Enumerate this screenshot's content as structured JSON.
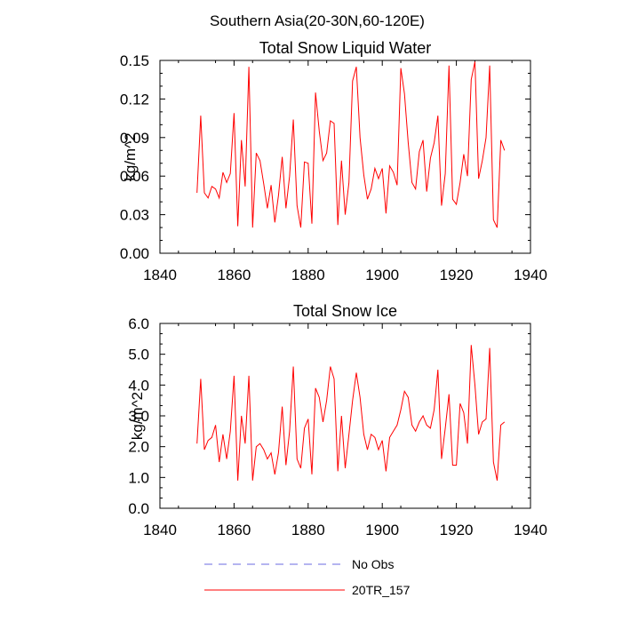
{
  "figure_title": "Southern Asia(20-30N,60-120E)",
  "legend": [
    {
      "label": "No Obs",
      "color": "#6a6ae0",
      "style": "dashed"
    },
    {
      "label": "20TR_157",
      "color": "#ff0000",
      "style": "solid"
    }
  ],
  "chart_data": [
    {
      "type": "line",
      "title": "Total Snow Liquid Water",
      "xlabel": "",
      "ylabel": "kg/m^2",
      "xlim": [
        1840,
        1940
      ],
      "ylim": [
        0,
        0.15
      ],
      "xticks": [
        1840,
        1860,
        1880,
        1900,
        1920,
        1940
      ],
      "yticks": [
        0.0,
        0.03,
        0.06,
        0.09,
        0.12,
        0.15
      ],
      "ytick_labels": [
        "0.00",
        "0.03",
        "0.06",
        "0.09",
        "0.12",
        "0.15"
      ],
      "series": [
        {
          "name": "20TR_157",
          "color": "#ff0000",
          "x": [
            1850,
            1851,
            1852,
            1853,
            1854,
            1855,
            1856,
            1857,
            1858,
            1859,
            1860,
            1861,
            1862,
            1863,
            1864,
            1865,
            1866,
            1867,
            1868,
            1869,
            1870,
            1871,
            1872,
            1873,
            1874,
            1875,
            1876,
            1877,
            1878,
            1879,
            1880,
            1881,
            1882,
            1883,
            1884,
            1885,
            1886,
            1887,
            1888,
            1889,
            1890,
            1891,
            1892,
            1893,
            1894,
            1895,
            1896,
            1897,
            1898,
            1899,
            1900,
            1901,
            1902,
            1903,
            1904,
            1905,
            1906,
            1907,
            1908,
            1909,
            1910,
            1911,
            1912,
            1913,
            1914,
            1915,
            1916,
            1917,
            1918,
            1919,
            1920,
            1921,
            1922,
            1923,
            1924,
            1925,
            1926,
            1927,
            1928,
            1929,
            1930,
            1931,
            1932,
            1933
          ],
          "values": [
            0.047,
            0.107,
            0.047,
            0.043,
            0.052,
            0.05,
            0.043,
            0.063,
            0.055,
            0.062,
            0.109,
            0.021,
            0.088,
            0.052,
            0.145,
            0.02,
            0.078,
            0.072,
            0.054,
            0.035,
            0.053,
            0.024,
            0.045,
            0.075,
            0.035,
            0.06,
            0.104,
            0.037,
            0.02,
            0.071,
            0.07,
            0.023,
            0.125,
            0.095,
            0.072,
            0.078,
            0.103,
            0.101,
            0.022,
            0.072,
            0.03,
            0.055,
            0.134,
            0.145,
            0.09,
            0.061,
            0.042,
            0.05,
            0.066,
            0.058,
            0.066,
            0.031,
            0.068,
            0.063,
            0.053,
            0.144,
            0.124,
            0.086,
            0.055,
            0.05,
            0.079,
            0.088,
            0.048,
            0.074,
            0.086,
            0.107,
            0.037,
            0.062,
            0.146,
            0.042,
            0.038,
            0.055,
            0.077,
            0.06,
            0.135,
            0.149,
            0.058,
            0.072,
            0.09,
            0.146,
            0.026,
            0.02,
            0.088,
            0.08
          ]
        }
      ]
    },
    {
      "type": "line",
      "title": "Total Snow Ice",
      "xlabel": "",
      "ylabel": "kg/m^2",
      "xlim": [
        1840,
        1940
      ],
      "ylim": [
        0,
        6
      ],
      "xticks": [
        1840,
        1860,
        1880,
        1900,
        1920,
        1940
      ],
      "yticks": [
        0,
        1,
        2,
        3,
        4,
        5,
        6
      ],
      "ytick_labels": [
        "0.0",
        "1.0",
        "2.0",
        "3.0",
        "4.0",
        "5.0",
        "6.0"
      ],
      "series": [
        {
          "name": "20TR_157",
          "color": "#ff0000",
          "x": [
            1850,
            1851,
            1852,
            1853,
            1854,
            1855,
            1856,
            1857,
            1858,
            1859,
            1860,
            1861,
            1862,
            1863,
            1864,
            1865,
            1866,
            1867,
            1868,
            1869,
            1870,
            1871,
            1872,
            1873,
            1874,
            1875,
            1876,
            1877,
            1878,
            1879,
            1880,
            1881,
            1882,
            1883,
            1884,
            1885,
            1886,
            1887,
            1888,
            1889,
            1890,
            1891,
            1892,
            1893,
            1894,
            1895,
            1896,
            1897,
            1898,
            1899,
            1900,
            1901,
            1902,
            1903,
            1904,
            1905,
            1906,
            1907,
            1908,
            1909,
            1910,
            1911,
            1912,
            1913,
            1914,
            1915,
            1916,
            1917,
            1918,
            1919,
            1920,
            1921,
            1922,
            1923,
            1924,
            1925,
            1926,
            1927,
            1928,
            1929,
            1930,
            1931,
            1932,
            1933
          ],
          "values": [
            2.1,
            4.2,
            1.9,
            2.2,
            2.3,
            2.7,
            1.5,
            2.4,
            1.6,
            2.5,
            4.3,
            0.9,
            3.0,
            2.1,
            4.3,
            0.9,
            2.0,
            2.1,
            1.9,
            1.6,
            1.8,
            1.1,
            1.8,
            3.3,
            1.4,
            2.5,
            4.6,
            1.6,
            1.3,
            2.6,
            2.9,
            1.1,
            3.9,
            3.6,
            2.8,
            3.5,
            4.6,
            4.2,
            1.2,
            3.0,
            1.3,
            2.4,
            3.5,
            4.4,
            3.6,
            2.4,
            1.9,
            2.4,
            2.3,
            1.9,
            2.2,
            1.2,
            2.3,
            2.5,
            2.7,
            3.2,
            3.8,
            3.6,
            2.7,
            2.5,
            2.8,
            3.0,
            2.7,
            2.6,
            3.2,
            4.5,
            1.6,
            2.6,
            3.7,
            1.4,
            1.4,
            3.4,
            3.1,
            2.1,
            5.3,
            4.0,
            2.4,
            2.8,
            2.9,
            5.2,
            1.5,
            0.9,
            2.7,
            2.8
          ]
        }
      ]
    }
  ]
}
